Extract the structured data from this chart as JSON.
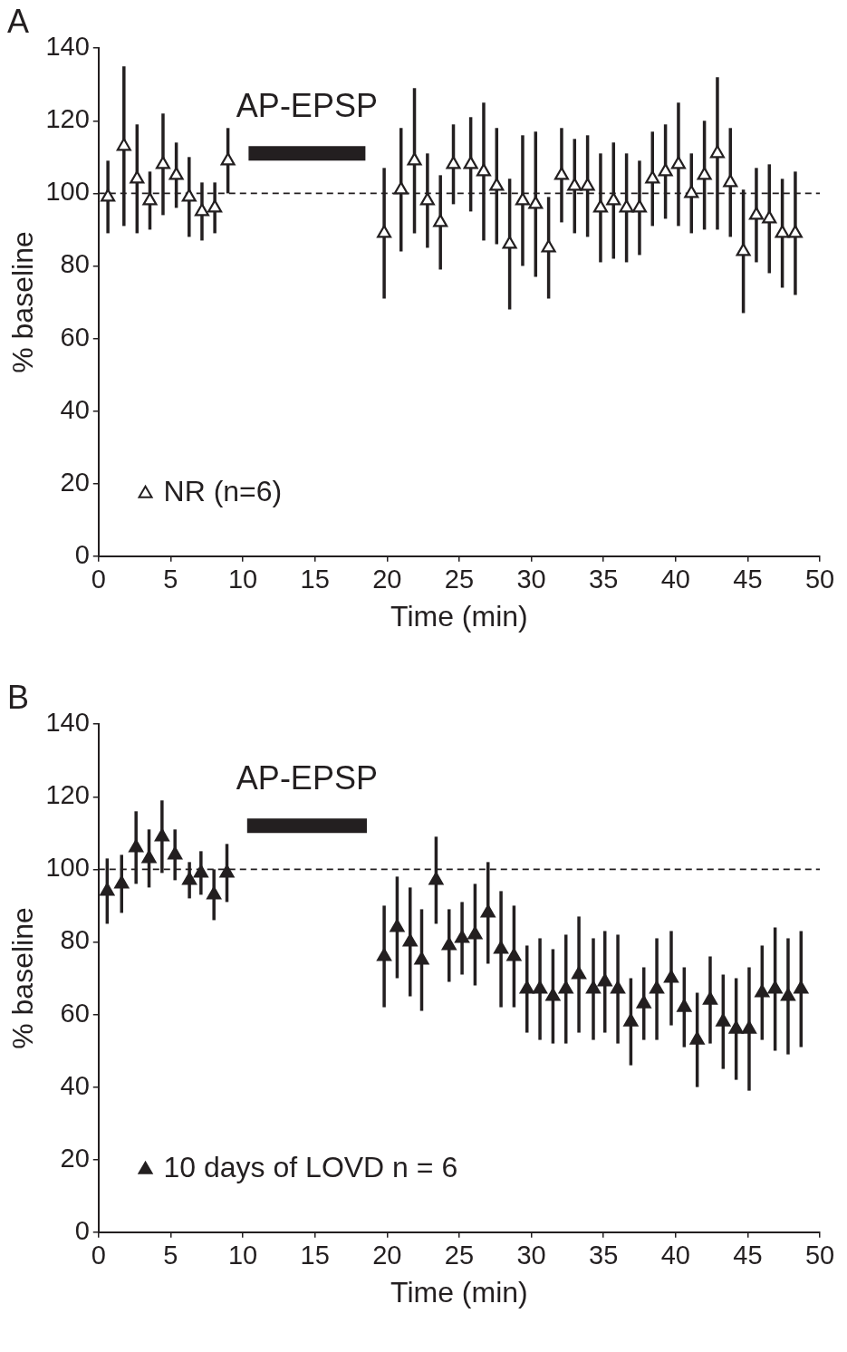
{
  "chart_data": [
    {
      "type": "scatter",
      "title": "A",
      "xlabel": "Time (min)",
      "ylabel": "% baseline",
      "xlim": [
        0,
        50
      ],
      "xticks": [
        0,
        5,
        10,
        15,
        20,
        25,
        30,
        35,
        40,
        45,
        50
      ],
      "ylim": [
        0,
        140
      ],
      "yticks": [
        0,
        20,
        40,
        60,
        80,
        100,
        120,
        140
      ],
      "marker": "triangle",
      "legend": "bottom left",
      "series": [
        {
          "name": "NR (n=6)",
          "color": "#231f20",
          "x": [
            0.65,
            1.76,
            2.67,
            3.56,
            4.47,
            5.39,
            6.28,
            7.17,
            8.06,
            8.97,
            19.8,
            20.97,
            21.9,
            22.8,
            23.7,
            24.6,
            25.8,
            26.7,
            27.6,
            28.5,
            29.4,
            30.3,
            31.2,
            32.1,
            33.0,
            33.9,
            34.8,
            35.7,
            36.6,
            37.5,
            38.4,
            39.3,
            40.2,
            41.1,
            42.0,
            42.9,
            43.8,
            44.7,
            45.6,
            46.5,
            47.4,
            48.3
          ],
          "values": [
            99,
            113,
            104,
            98,
            108,
            105,
            99,
            95,
            96,
            109,
            89,
            101,
            109,
            98,
            92,
            108,
            108,
            106,
            102,
            86,
            98,
            97,
            85,
            105,
            102,
            102,
            96,
            98,
            96,
            96,
            104,
            106,
            108,
            100,
            105,
            111,
            103,
            84,
            94,
            93,
            89,
            89
          ],
          "errors": [
            10,
            22,
            15,
            8,
            14,
            9,
            11,
            8,
            7,
            9,
            18,
            17,
            20,
            13,
            13,
            11,
            13,
            19,
            16,
            18,
            18,
            20,
            14,
            13,
            13,
            14,
            15,
            16,
            15,
            13,
            13,
            13,
            17,
            11,
            15,
            21,
            15,
            17,
            13,
            15,
            15,
            17
          ]
        },
        {
          "type": "line",
          "color": "#231f20",
          "marker": "none",
          "x": [
            10.4,
            18.5
          ],
          "values": [
            111,
            111
          ]
        }
      ],
      "ref_lines": [
        {
          "axis": "y",
          "value": 100,
          "line_style": "dashed",
          "color": "#231f20"
        }
      ],
      "annotations": [
        "AP-EPSP"
      ]
    },
    {
      "type": "scatter",
      "title": "B",
      "xlabel": "Time (min)",
      "ylabel": "% baseline",
      "xlim": [
        0,
        50
      ],
      "xticks": [
        0,
        5,
        10,
        15,
        20,
        25,
        30,
        35,
        40,
        45,
        50
      ],
      "ylim": [
        0,
        140
      ],
      "yticks": [
        0,
        20,
        40,
        60,
        80,
        100,
        120,
        140
      ],
      "marker": "triangle",
      "legend": "bottom left",
      "series": [
        {
          "name": "10 days of LOVD n = 6",
          "color": "#231f20",
          "x": [
            0.6,
            1.6,
            2.6,
            3.5,
            4.4,
            5.3,
            6.3,
            7.1,
            8.0,
            8.9,
            19.8,
            20.7,
            21.6,
            22.4,
            23.4,
            24.3,
            25.2,
            26.1,
            27.0,
            27.9,
            28.8,
            29.7,
            30.6,
            31.5,
            32.4,
            33.3,
            34.3,
            35.1,
            36.0,
            36.9,
            37.8,
            38.7,
            39.7,
            40.6,
            41.5,
            42.4,
            43.3,
            44.2,
            45.1,
            46.0,
            46.9,
            47.8,
            48.7
          ],
          "values": [
            94,
            96,
            106,
            103,
            109,
            104,
            97,
            99,
            93,
            99,
            76,
            84,
            80,
            75,
            97,
            79,
            81,
            82,
            88,
            78,
            76,
            67,
            67,
            65,
            67,
            71,
            67,
            69,
            67,
            58,
            63,
            67,
            70,
            62,
            53,
            64,
            58,
            56,
            56,
            66,
            67,
            65,
            67
          ],
          "errors": [
            9,
            8,
            10,
            8,
            10,
            7,
            5,
            6,
            7,
            8,
            14,
            14,
            15,
            14,
            12,
            10,
            10,
            14,
            14,
            16,
            14,
            12,
            14,
            13,
            15,
            16,
            14,
            14,
            15,
            12,
            10,
            14,
            13,
            11,
            13,
            12,
            13,
            14,
            17,
            13,
            17,
            16,
            16
          ]
        },
        {
          "type": "line",
          "color": "#231f20",
          "marker": "none",
          "x": [
            10.3,
            18.6
          ],
          "values": [
            112,
            112
          ]
        }
      ],
      "ref_lines": [
        {
          "axis": "y",
          "value": 100,
          "line_style": "dashed",
          "color": "#231f20"
        }
      ],
      "annotations": [
        "AP-EPSP"
      ]
    }
  ]
}
